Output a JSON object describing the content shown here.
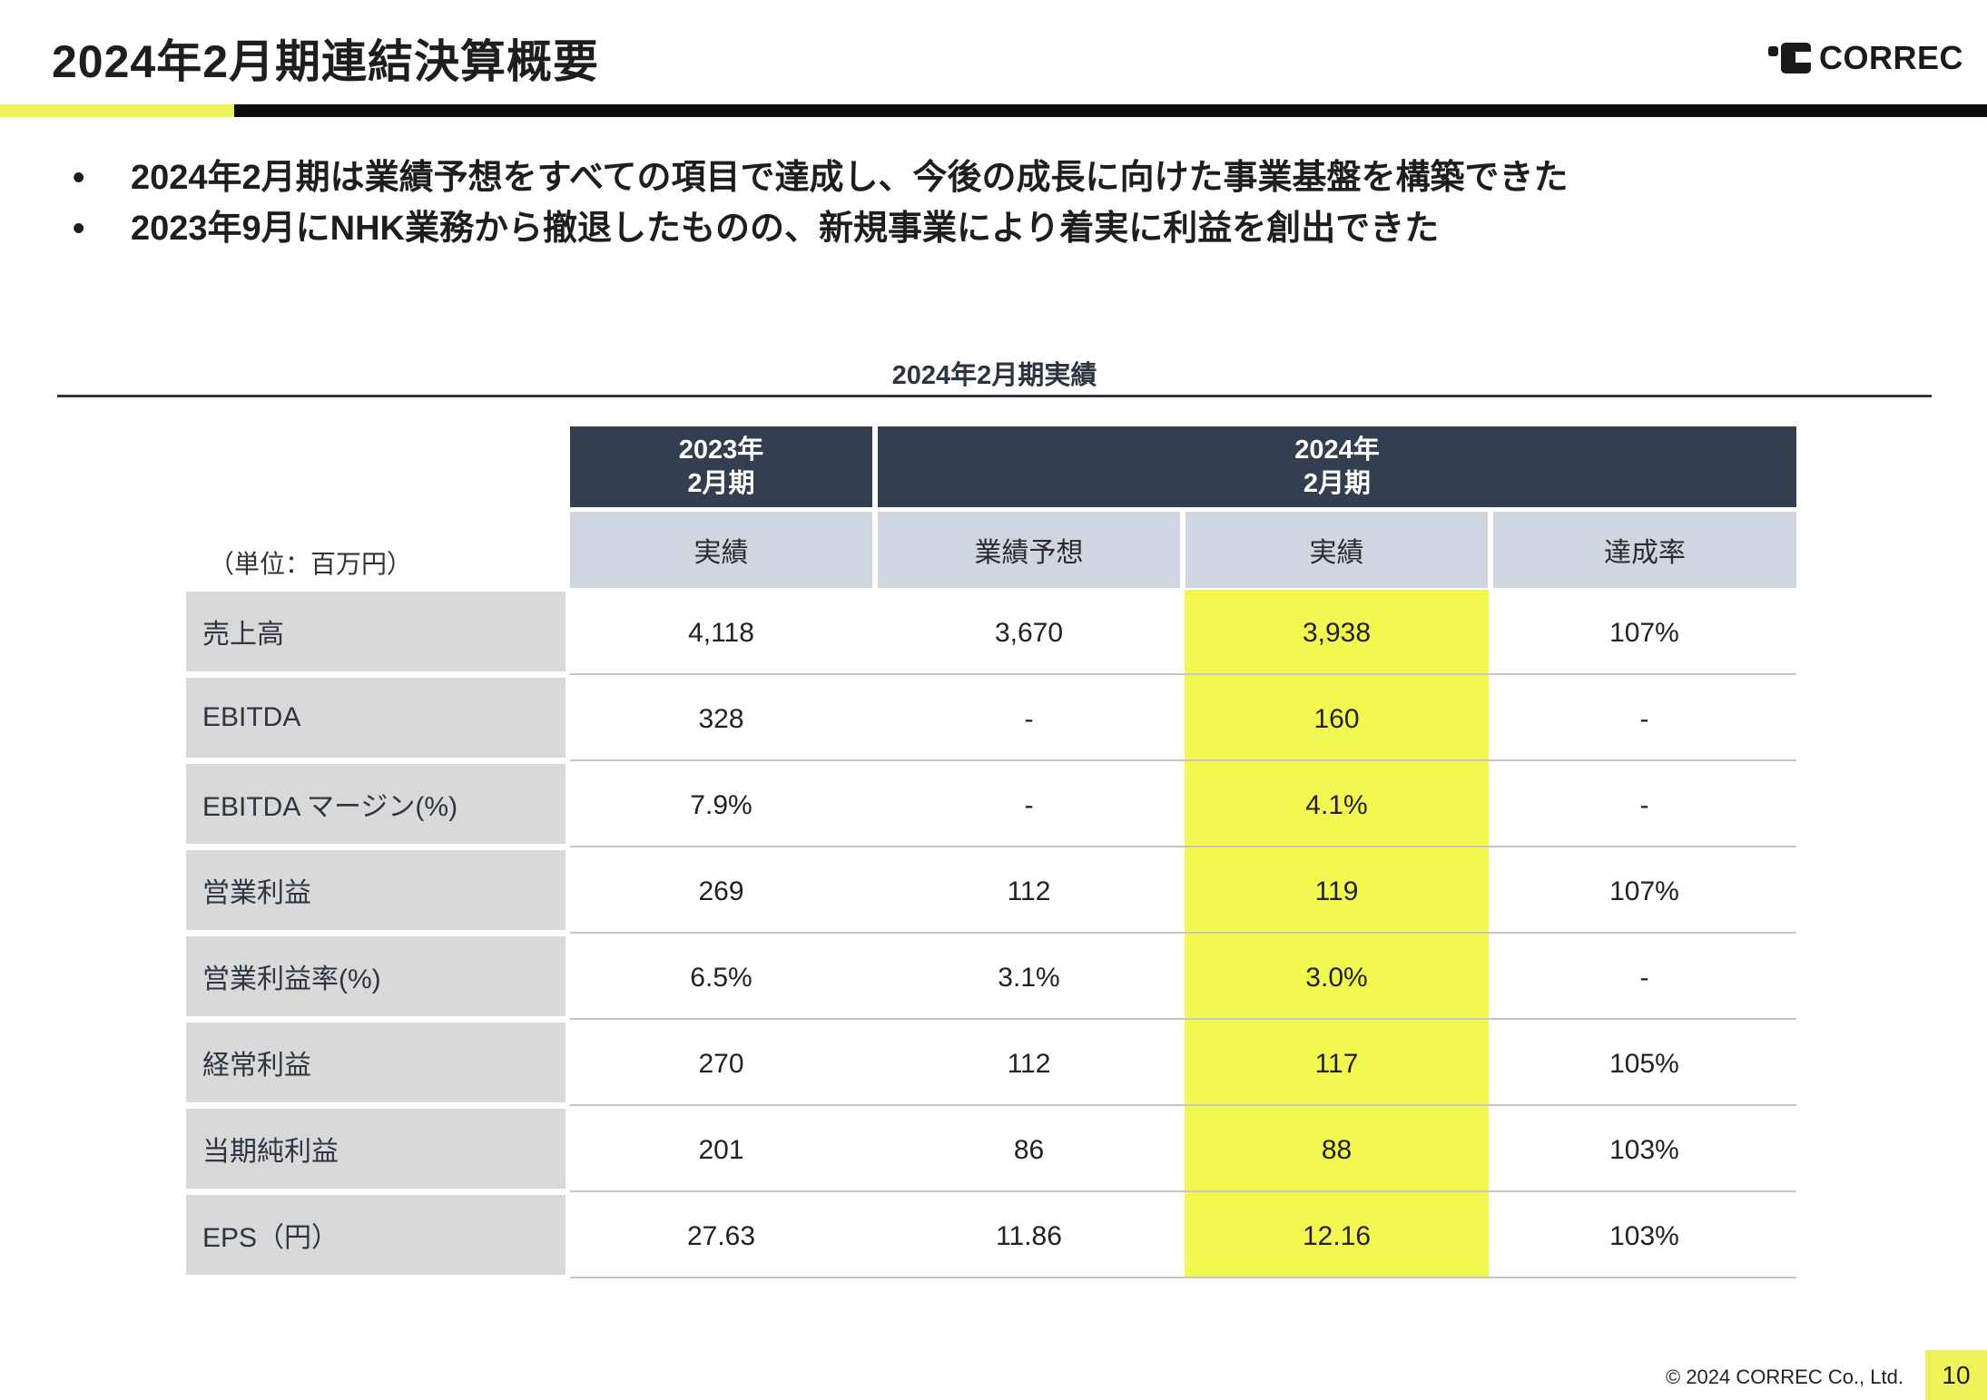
{
  "header": {
    "title": "2024年2月期連結決算概要",
    "logo_text": "CORREC"
  },
  "bullets": [
    "2024年2月期は業績予想をすべての項目で達成し、今後の成長に向けた事業基盤を構築できた",
    "2023年9月にNHK業務から撤退したものの、新規事業により着実に利益を創出できた"
  ],
  "bullet_glyph": "•",
  "section_title": "2024年2月期実績",
  "table": {
    "unit_label": "（単位：百万円）",
    "group_headers": [
      {
        "line1": "2023年",
        "line2": "2月期"
      },
      {
        "line1": "2024年",
        "line2": "2月期"
      }
    ],
    "sub_headers": [
      "実績",
      "業績予想",
      "実績",
      "達成率"
    ],
    "rows": [
      {
        "label": "売上高",
        "values": [
          "4,118",
          "3,670",
          "3,938",
          "107%"
        ]
      },
      {
        "label": "EBITDA",
        "values": [
          "328",
          "-",
          "160",
          "-"
        ]
      },
      {
        "label": "EBITDA マージン(%)",
        "values": [
          "7.9%",
          "-",
          "4.1%",
          "-"
        ]
      },
      {
        "label": "営業利益",
        "values": [
          "269",
          "112",
          "119",
          "107%"
        ]
      },
      {
        "label": "営業利益率(%)",
        "values": [
          "6.5%",
          "3.1%",
          "3.0%",
          "-"
        ]
      },
      {
        "label": "経常利益",
        "values": [
          "270",
          "112",
          "117",
          "105%"
        ]
      },
      {
        "label": "当期純利益",
        "values": [
          "201",
          "86",
          "88",
          "103%"
        ]
      },
      {
        "label": "EPS（円）",
        "values": [
          "27.63",
          "11.86",
          "12.16",
          "103%"
        ]
      }
    ]
  },
  "colors": {
    "accent_yellow": "#f3f851",
    "header_dark": "#333f4f",
    "header_light": "#d0d6df",
    "label_gray": "#d9d9d9"
  },
  "footer": {
    "copyright": "© 2024 CORREC Co., Ltd.",
    "page_number": "10"
  }
}
